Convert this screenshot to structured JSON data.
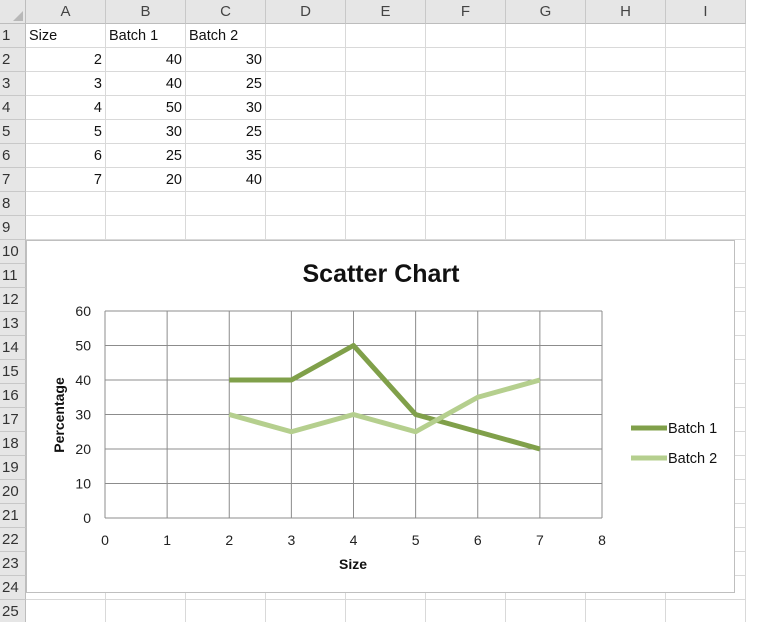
{
  "sheet": {
    "columns": [
      "A",
      "B",
      "C",
      "D",
      "E",
      "F",
      "G",
      "H",
      "I"
    ],
    "rows": [
      "1",
      "2",
      "3",
      "4",
      "5",
      "6",
      "7",
      "8",
      "9",
      "10",
      "11",
      "12",
      "13",
      "14",
      "15",
      "16",
      "17",
      "18",
      "19",
      "20",
      "21",
      "22",
      "23",
      "24",
      "25"
    ],
    "header_row": [
      "Size",
      "Batch 1",
      "Batch 2"
    ],
    "data_rows": [
      [
        "2",
        "40",
        "30"
      ],
      [
        "3",
        "40",
        "25"
      ],
      [
        "4",
        "50",
        "30"
      ],
      [
        "5",
        "30",
        "25"
      ],
      [
        "6",
        "25",
        "35"
      ],
      [
        "7",
        "20",
        "40"
      ]
    ]
  },
  "chart_data": {
    "type": "scatter",
    "title": "Scatter Chart",
    "xlabel": "Size",
    "ylabel": "Percentage",
    "xlim": [
      0,
      8
    ],
    "ylim": [
      0,
      60
    ],
    "xticks": [
      "0",
      "1",
      "2",
      "3",
      "4",
      "5",
      "6",
      "7",
      "8"
    ],
    "yticks": [
      "0",
      "10",
      "20",
      "30",
      "40",
      "50",
      "60"
    ],
    "grid": true,
    "legend_position": "right",
    "series": [
      {
        "name": "Batch 1",
        "color": "#80a04a",
        "x": [
          2,
          3,
          4,
          5,
          6,
          7
        ],
        "y": [
          40,
          40,
          50,
          30,
          25,
          20
        ]
      },
      {
        "name": "Batch 2",
        "color": "#b5cf8e",
        "x": [
          2,
          3,
          4,
          5,
          6,
          7
        ],
        "y": [
          30,
          25,
          30,
          25,
          35,
          40
        ]
      }
    ]
  }
}
